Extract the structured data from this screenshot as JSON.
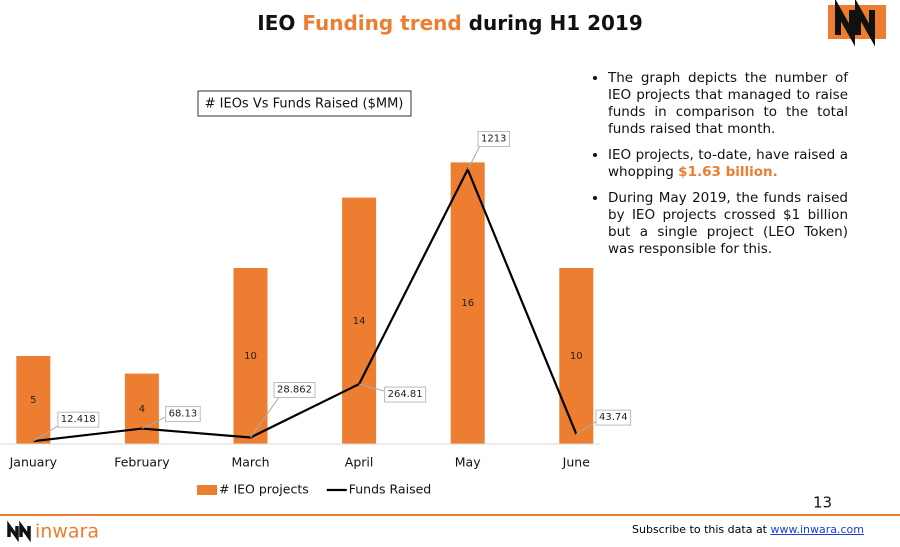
{
  "header": {
    "title_parts": [
      "IEO ",
      "Funding trend",
      " during H1 2019"
    ]
  },
  "chart_data": {
    "type": "bar_line",
    "title": "# IEOs Vs Funds Raised ($MM)",
    "categories": [
      "January",
      "February",
      "March",
      "April",
      "May",
      "June"
    ],
    "series": [
      {
        "name": "# IEO projects",
        "type": "bar",
        "color": "#ed7d31",
        "values": [
          5,
          4,
          10,
          14,
          16,
          10
        ]
      },
      {
        "name": "Funds Raised",
        "type": "line",
        "color": "#000000",
        "axis": "y2",
        "values": [
          12.418,
          68.13,
          28.862,
          264.81,
          1213,
          43.74
        ]
      }
    ],
    "ylim": [
      0,
      18
    ],
    "y2lim": [
      0,
      1400
    ],
    "legend": "bottom"
  },
  "bullets": [
    [
      "The graph depicts the number of IEO projects that managed to raise funds in comparison to the total funds raised that month."
    ],
    [
      "IEO projects, to-date, have raised a whopping ",
      "$1.63 billion."
    ],
    [
      "During May 2019, the funds raised by IEO projects crossed $1 billion but a single project (LEO Token) was responsible for this."
    ]
  ],
  "page_number": "13",
  "footer": {
    "brand": "inwara",
    "text": "Subscribe to this data at ",
    "link": "www.inwara.com"
  }
}
